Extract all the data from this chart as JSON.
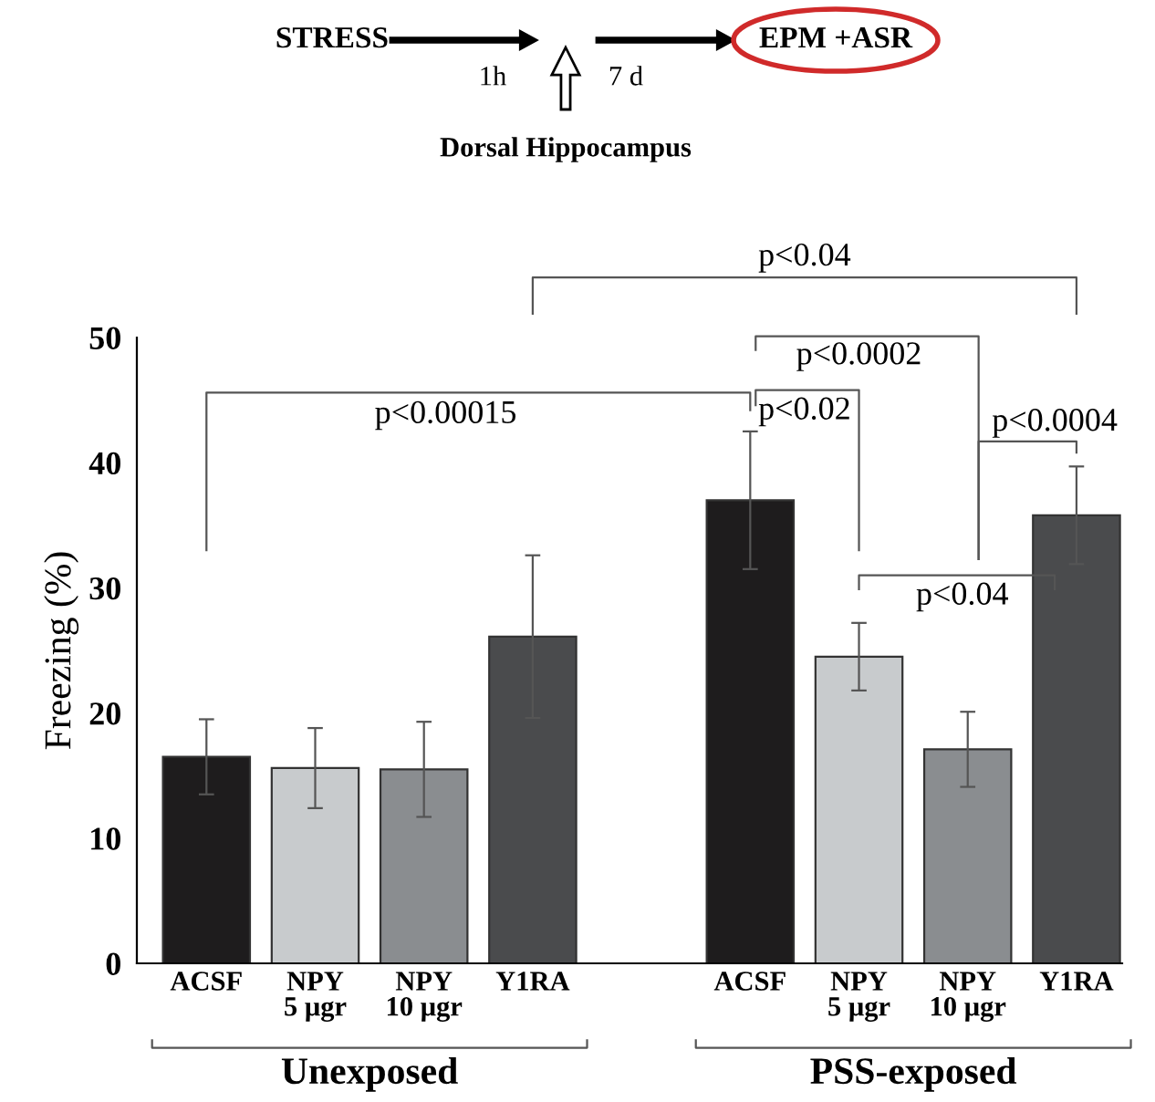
{
  "chart_data": {
    "type": "bar",
    "ylabel": "Freezing (%)",
    "categories": [
      "ACSF",
      "NPY\n5 μgr",
      "NPY\n10 μgr",
      "Y1RA",
      null,
      "ACSF",
      "NPY\n5 μgr",
      "NPY\n10 μgr",
      "Y1RA"
    ],
    "values": [
      16.5,
      15.6,
      15.5,
      26.1,
      null,
      37.0,
      24.5,
      17.1,
      35.8
    ],
    "errors": [
      3.0,
      3.2,
      3.8,
      6.5,
      null,
      5.5,
      2.7,
      3.0,
      3.9
    ],
    "colors": [
      "#1e1c1d",
      "#c8cbcd",
      "#8a8d90",
      "#4a4b4d",
      "#ffffff",
      "#1e1c1d",
      "#c8cbcd",
      "#8a8d90",
      "#4a4b4d"
    ],
    "ylim": [
      0,
      50
    ],
    "yticks": [
      0,
      10,
      20,
      30,
      40,
      50
    ],
    "grid": false,
    "legend": false,
    "annotations": [
      "STRESS",
      "1h",
      "7 d",
      "EPM +ASR",
      "Dorsal Hippocampus",
      "Unexposed",
      "PSS-exposed",
      "p<0.04",
      "p<0.00015",
      "p<0.0002",
      "p<0.02",
      "p<0.0004",
      "p<0.04"
    ]
  }
}
